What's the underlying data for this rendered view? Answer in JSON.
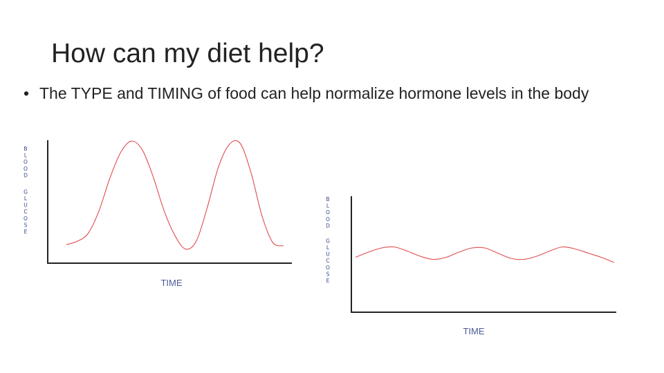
{
  "slide": {
    "title": "How can my diet help?",
    "bullet": "The TYPE and TIMING of food can help normalize hormone levels in the body"
  },
  "colors": {
    "curve": "#e04a4a",
    "axis": "#222222",
    "label": "#4a5a9a"
  },
  "chart_data": [
    {
      "type": "line",
      "xlabel": "TIME",
      "ylabel": "BLOOD GLUCOSE",
      "grid": false,
      "xlim": [
        0,
        10
      ],
      "ylim": [
        0,
        10
      ],
      "series": [
        {
          "x": [
            0,
            0.5,
            1,
            1.5,
            2,
            2.5,
            3,
            3.5,
            4,
            4.5,
            5,
            5.5,
            6,
            6.5,
            7,
            7.5,
            8,
            8.5,
            9,
            9.5,
            10
          ],
          "y": [
            0.6,
            0.9,
            1.6,
            3.6,
            6.5,
            8.8,
            9.8,
            9.0,
            6.6,
            3.6,
            1.4,
            0.2,
            1.0,
            4.0,
            7.5,
            9.5,
            9.6,
            7.0,
            3.2,
            0.8,
            0.5
          ]
        }
      ]
    },
    {
      "type": "line",
      "xlabel": "TIME",
      "ylabel": "BLOOD GLUCOSE",
      "grid": false,
      "xlim": [
        0,
        10
      ],
      "ylim": [
        0,
        10
      ],
      "series": [
        {
          "x": [
            0,
            0.5,
            1,
            1.5,
            2,
            2.5,
            3,
            3.5,
            4,
            4.5,
            5,
            5.5,
            6,
            6.5,
            7,
            7.5,
            8,
            8.5,
            9,
            9.5,
            10
          ],
          "y": [
            4.5,
            5.0,
            5.4,
            5.5,
            5.1,
            4.6,
            4.3,
            4.5,
            5.0,
            5.4,
            5.4,
            4.9,
            4.4,
            4.3,
            4.6,
            5.1,
            5.5,
            5.3,
            4.9,
            4.5,
            4.0
          ]
        }
      ]
    }
  ]
}
